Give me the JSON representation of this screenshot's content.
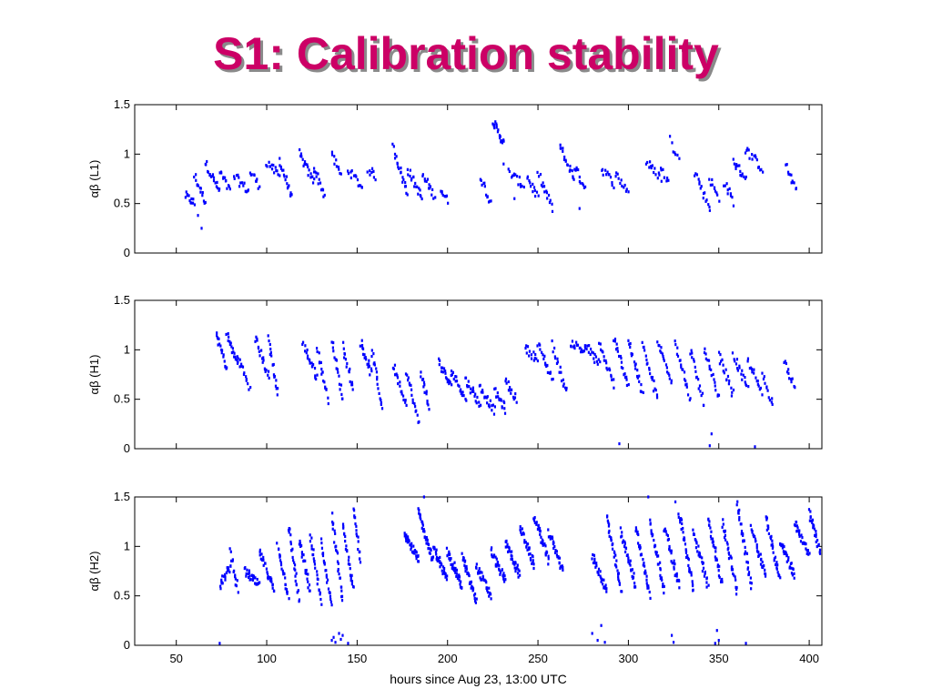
{
  "slide": {
    "title": "S1: Calibration stability",
    "title_color": "#cc0066",
    "shadow_color": "#8a8a8a"
  },
  "chart_data": {
    "type": "scatter",
    "marker_color": "#0000ff",
    "shared_x": {
      "label": "hours since Aug 23, 13:00 UTC",
      "lim": [
        27,
        407
      ],
      "ticks": [
        50,
        100,
        150,
        200,
        250,
        300,
        350,
        400
      ],
      "tick_labels": [
        "50",
        "100",
        "150",
        "200",
        "250",
        "300",
        "350",
        "400"
      ]
    },
    "panels": [
      {
        "name": "L1",
        "ylabel": "αβ (L1)",
        "ylim": [
          0,
          1.5
        ],
        "yticks": [
          0,
          0.5,
          1,
          1.5
        ],
        "ytick_labels": [
          "0",
          "0.5",
          "1",
          "1.5"
        ],
        "segments": [
          {
            "x0": 55,
            "x1": 60,
            "y0": 0.58,
            "y1": 0.5,
            "n": 12
          },
          {
            "x0": 60,
            "x1": 66,
            "y0": 0.78,
            "y1": 0.52,
            "n": 14
          },
          {
            "x0": 66,
            "x1": 74,
            "y0": 0.92,
            "y1": 0.62,
            "n": 18
          },
          {
            "x0": 74,
            "x1": 80,
            "y0": 0.82,
            "y1": 0.62,
            "n": 12
          },
          {
            "x0": 82,
            "x1": 90,
            "y0": 0.78,
            "y1": 0.62,
            "n": 14
          },
          {
            "x0": 91,
            "x1": 96,
            "y0": 0.82,
            "y1": 0.68,
            "n": 10
          },
          {
            "x0": 100,
            "x1": 107,
            "y0": 0.92,
            "y1": 0.78,
            "n": 14
          },
          {
            "x0": 107,
            "x1": 114,
            "y0": 0.94,
            "y1": 0.55,
            "n": 18
          },
          {
            "x0": 118,
            "x1": 126,
            "y0": 1.0,
            "y1": 0.72,
            "n": 18
          },
          {
            "x0": 126,
            "x1": 132,
            "y0": 0.88,
            "y1": 0.58,
            "n": 14
          },
          {
            "x0": 136,
            "x1": 141,
            "y0": 1.0,
            "y1": 0.78,
            "n": 10
          },
          {
            "x0": 145,
            "x1": 153,
            "y0": 0.85,
            "y1": 0.65,
            "n": 14
          },
          {
            "x0": 156,
            "x1": 160,
            "y0": 0.85,
            "y1": 0.78,
            "n": 8
          },
          {
            "x0": 170,
            "x1": 178,
            "y0": 1.07,
            "y1": 0.6,
            "n": 20
          },
          {
            "x0": 178,
            "x1": 186,
            "y0": 0.85,
            "y1": 0.55,
            "n": 18
          },
          {
            "x0": 186,
            "x1": 193,
            "y0": 0.78,
            "y1": 0.58,
            "n": 14
          },
          {
            "x0": 196,
            "x1": 200,
            "y0": 0.65,
            "y1": 0.52,
            "n": 8
          },
          {
            "x0": 218,
            "x1": 224,
            "y0": 0.78,
            "y1": 0.5,
            "n": 12
          },
          {
            "x0": 225,
            "x1": 231,
            "y0": 1.35,
            "y1": 1.1,
            "n": 20
          },
          {
            "x0": 234,
            "x1": 242,
            "y0": 0.82,
            "y1": 0.68,
            "n": 14
          },
          {
            "x0": 244,
            "x1": 250,
            "y0": 0.78,
            "y1": 0.55,
            "n": 12
          },
          {
            "x0": 250,
            "x1": 258,
            "y0": 0.8,
            "y1": 0.45,
            "n": 16
          },
          {
            "x0": 262,
            "x1": 270,
            "y0": 1.08,
            "y1": 0.75,
            "n": 18
          },
          {
            "x0": 270,
            "x1": 276,
            "y0": 0.88,
            "y1": 0.66,
            "n": 12
          },
          {
            "x0": 285,
            "x1": 292,
            "y0": 0.86,
            "y1": 0.7,
            "n": 12
          },
          {
            "x0": 293,
            "x1": 300,
            "y0": 0.8,
            "y1": 0.62,
            "n": 12
          },
          {
            "x0": 310,
            "x1": 318,
            "y0": 0.92,
            "y1": 0.76,
            "n": 14
          },
          {
            "x0": 318,
            "x1": 322,
            "y0": 0.85,
            "y1": 0.72,
            "n": 8
          },
          {
            "x0": 324,
            "x1": 328,
            "y0": 1.08,
            "y1": 1.0,
            "n": 6
          },
          {
            "x0": 337,
            "x1": 345,
            "y0": 0.82,
            "y1": 0.45,
            "n": 16
          },
          {
            "x0": 345,
            "x1": 350,
            "y0": 0.75,
            "y1": 0.55,
            "n": 10
          },
          {
            "x0": 353,
            "x1": 358,
            "y0": 0.72,
            "y1": 0.52,
            "n": 10
          },
          {
            "x0": 358,
            "x1": 365,
            "y0": 0.92,
            "y1": 0.76,
            "n": 14
          },
          {
            "x0": 365,
            "x1": 374,
            "y0": 1.05,
            "y1": 0.85,
            "n": 16
          },
          {
            "x0": 387,
            "x1": 393,
            "y0": 0.88,
            "y1": 0.62,
            "n": 12
          }
        ],
        "points": [
          {
            "x": 62,
            "y": 0.38
          },
          {
            "x": 64,
            "y": 0.25
          },
          {
            "x": 323,
            "y": 1.18
          },
          {
            "x": 273,
            "y": 0.45
          },
          {
            "x": 231,
            "y": 0.9
          },
          {
            "x": 237,
            "y": 0.55
          }
        ]
      },
      {
        "name": "H1",
        "ylabel": "αβ (H1)",
        "ylim": [
          0,
          1.5
        ],
        "yticks": [
          0,
          0.5,
          1,
          1.5
        ],
        "ytick_labels": [
          "0",
          "0.5",
          "1",
          "1.5"
        ],
        "segments": [
          {
            "x0": 72,
            "x1": 78,
            "y0": 1.18,
            "y1": 0.8,
            "n": 18
          },
          {
            "x0": 78,
            "x1": 84,
            "y0": 1.15,
            "y1": 0.85,
            "n": 18
          },
          {
            "x0": 84,
            "x1": 90,
            "y0": 0.95,
            "y1": 0.62,
            "n": 14
          },
          {
            "x0": 94,
            "x1": 101,
            "y0": 1.12,
            "y1": 0.72,
            "n": 20
          },
          {
            "x0": 101,
            "x1": 106,
            "y0": 1.12,
            "y1": 0.55,
            "n": 18
          },
          {
            "x0": 120,
            "x1": 128,
            "y0": 1.06,
            "y1": 0.72,
            "n": 20
          },
          {
            "x0": 128,
            "x1": 134,
            "y0": 1.0,
            "y1": 0.5,
            "n": 18
          },
          {
            "x0": 136,
            "x1": 142,
            "y0": 1.1,
            "y1": 0.5,
            "n": 18
          },
          {
            "x0": 142,
            "x1": 148,
            "y0": 1.05,
            "y1": 0.6,
            "n": 16
          },
          {
            "x0": 152,
            "x1": 158,
            "y0": 1.08,
            "y1": 0.75,
            "n": 18
          },
          {
            "x0": 158,
            "x1": 164,
            "y0": 1.0,
            "y1": 0.4,
            "n": 18
          },
          {
            "x0": 170,
            "x1": 177,
            "y0": 0.85,
            "y1": 0.45,
            "n": 18
          },
          {
            "x0": 177,
            "x1": 184,
            "y0": 0.8,
            "y1": 0.25,
            "n": 18
          },
          {
            "x0": 185,
            "x1": 190,
            "y0": 0.78,
            "y1": 0.42,
            "n": 14
          },
          {
            "x0": 195,
            "x1": 202,
            "y0": 0.88,
            "y1": 0.62,
            "n": 18
          },
          {
            "x0": 202,
            "x1": 210,
            "y0": 0.8,
            "y1": 0.5,
            "n": 20
          },
          {
            "x0": 210,
            "x1": 218,
            "y0": 0.7,
            "y1": 0.45,
            "n": 20
          },
          {
            "x0": 218,
            "x1": 226,
            "y0": 0.62,
            "y1": 0.38,
            "n": 20
          },
          {
            "x0": 226,
            "x1": 232,
            "y0": 0.58,
            "y1": 0.4,
            "n": 16
          },
          {
            "x0": 232,
            "x1": 238,
            "y0": 0.68,
            "y1": 0.5,
            "n": 14
          },
          {
            "x0": 243,
            "x1": 250,
            "y0": 1.02,
            "y1": 0.9,
            "n": 14
          },
          {
            "x0": 250,
            "x1": 258,
            "y0": 1.05,
            "y1": 0.7,
            "n": 18
          },
          {
            "x0": 258,
            "x1": 266,
            "y0": 1.05,
            "y1": 0.55,
            "n": 18
          },
          {
            "x0": 268,
            "x1": 276,
            "y0": 1.08,
            "y1": 0.98,
            "n": 16
          },
          {
            "x0": 276,
            "x1": 284,
            "y0": 1.05,
            "y1": 0.85,
            "n": 18
          },
          {
            "x0": 284,
            "x1": 292,
            "y0": 1.05,
            "y1": 0.65,
            "n": 18
          },
          {
            "x0": 292,
            "x1": 300,
            "y0": 1.1,
            "y1": 0.65,
            "n": 20
          },
          {
            "x0": 300,
            "x1": 308,
            "y0": 1.1,
            "y1": 0.55,
            "n": 20
          },
          {
            "x0": 308,
            "x1": 316,
            "y0": 1.05,
            "y1": 0.5,
            "n": 20
          },
          {
            "x0": 316,
            "x1": 324,
            "y0": 1.08,
            "y1": 0.7,
            "n": 18
          },
          {
            "x0": 326,
            "x1": 334,
            "y0": 1.08,
            "y1": 0.5,
            "n": 20
          },
          {
            "x0": 334,
            "x1": 342,
            "y0": 1.0,
            "y1": 0.45,
            "n": 18
          },
          {
            "x0": 342,
            "x1": 350,
            "y0": 1.0,
            "y1": 0.5,
            "n": 18
          },
          {
            "x0": 350,
            "x1": 358,
            "y0": 0.95,
            "y1": 0.55,
            "n": 18
          },
          {
            "x0": 358,
            "x1": 366,
            "y0": 0.95,
            "y1": 0.6,
            "n": 18
          },
          {
            "x0": 366,
            "x1": 374,
            "y0": 0.9,
            "y1": 0.55,
            "n": 16
          },
          {
            "x0": 374,
            "x1": 380,
            "y0": 0.75,
            "y1": 0.45,
            "n": 12
          },
          {
            "x0": 386,
            "x1": 392,
            "y0": 0.88,
            "y1": 0.65,
            "n": 12
          }
        ],
        "points": [
          {
            "x": 295,
            "y": 0.05
          },
          {
            "x": 345,
            "y": 0.03
          },
          {
            "x": 346,
            "y": 0.15
          },
          {
            "x": 370,
            "y": 0.02
          },
          {
            "x": 91,
            "y": 0.62
          }
        ]
      },
      {
        "name": "H2",
        "ylabel": "αβ (H2)",
        "ylim": [
          0,
          1.5
        ],
        "yticks": [
          0,
          0.5,
          1,
          1.5
        ],
        "ytick_labels": [
          "0",
          "0.5",
          "1",
          "1.5"
        ],
        "segments": [
          {
            "x0": 74,
            "x1": 80,
            "y0": 0.6,
            "y1": 0.8,
            "n": 22
          },
          {
            "x0": 80,
            "x1": 84,
            "y0": 0.95,
            "y1": 0.55,
            "n": 14
          },
          {
            "x0": 88,
            "x1": 96,
            "y0": 0.75,
            "y1": 0.6,
            "n": 28
          },
          {
            "x0": 96,
            "x1": 104,
            "y0": 0.95,
            "y1": 0.55,
            "n": 28
          },
          {
            "x0": 106,
            "x1": 112,
            "y0": 1.0,
            "y1": 0.5,
            "n": 24
          },
          {
            "x0": 112,
            "x1": 118,
            "y0": 1.2,
            "y1": 0.45,
            "n": 26
          },
          {
            "x0": 118,
            "x1": 124,
            "y0": 1.05,
            "y1": 0.55,
            "n": 24
          },
          {
            "x0": 124,
            "x1": 130,
            "y0": 1.1,
            "y1": 0.45,
            "n": 24
          },
          {
            "x0": 130,
            "x1": 136,
            "y0": 1.05,
            "y1": 0.4,
            "n": 24
          },
          {
            "x0": 136,
            "x1": 142,
            "y0": 1.3,
            "y1": 0.45,
            "n": 26
          },
          {
            "x0": 142,
            "x1": 148,
            "y0": 1.2,
            "y1": 0.55,
            "n": 24
          },
          {
            "x0": 148,
            "x1": 152,
            "y0": 1.38,
            "y1": 0.85,
            "n": 18
          },
          {
            "x0": 176,
            "x1": 184,
            "y0": 1.15,
            "y1": 0.85,
            "n": 34
          },
          {
            "x0": 184,
            "x1": 192,
            "y0": 1.35,
            "y1": 0.85,
            "n": 36
          },
          {
            "x0": 192,
            "x1": 200,
            "y0": 1.0,
            "y1": 0.65,
            "n": 34
          },
          {
            "x0": 200,
            "x1": 208,
            "y0": 0.95,
            "y1": 0.6,
            "n": 34
          },
          {
            "x0": 208,
            "x1": 216,
            "y0": 0.9,
            "y1": 0.45,
            "n": 34
          },
          {
            "x0": 216,
            "x1": 224,
            "y0": 0.8,
            "y1": 0.5,
            "n": 32
          },
          {
            "x0": 224,
            "x1": 232,
            "y0": 0.95,
            "y1": 0.65,
            "n": 32
          },
          {
            "x0": 232,
            "x1": 240,
            "y0": 1.05,
            "y1": 0.7,
            "n": 32
          },
          {
            "x0": 240,
            "x1": 248,
            "y0": 1.2,
            "y1": 0.8,
            "n": 32
          },
          {
            "x0": 248,
            "x1": 256,
            "y0": 1.3,
            "y1": 0.85,
            "n": 32
          },
          {
            "x0": 256,
            "x1": 264,
            "y0": 1.15,
            "y1": 0.75,
            "n": 30
          },
          {
            "x0": 280,
            "x1": 288,
            "y0": 0.9,
            "y1": 0.55,
            "n": 30
          },
          {
            "x0": 288,
            "x1": 296,
            "y0": 1.3,
            "y1": 0.55,
            "n": 34
          },
          {
            "x0": 296,
            "x1": 304,
            "y0": 1.15,
            "y1": 0.6,
            "n": 32
          },
          {
            "x0": 304,
            "x1": 312,
            "y0": 1.2,
            "y1": 0.5,
            "n": 32
          },
          {
            "x0": 312,
            "x1": 320,
            "y0": 1.25,
            "y1": 0.55,
            "n": 32
          },
          {
            "x0": 320,
            "x1": 328,
            "y0": 1.2,
            "y1": 0.6,
            "n": 32
          },
          {
            "x0": 328,
            "x1": 336,
            "y0": 1.35,
            "y1": 0.55,
            "n": 34
          },
          {
            "x0": 336,
            "x1": 344,
            "y0": 1.15,
            "y1": 0.6,
            "n": 32
          },
          {
            "x0": 344,
            "x1": 352,
            "y0": 1.3,
            "y1": 0.6,
            "n": 32
          },
          {
            "x0": 352,
            "x1": 360,
            "y0": 1.25,
            "y1": 0.55,
            "n": 32
          },
          {
            "x0": 360,
            "x1": 368,
            "y0": 1.45,
            "y1": 0.6,
            "n": 34
          },
          {
            "x0": 368,
            "x1": 376,
            "y0": 1.2,
            "y1": 0.7,
            "n": 32
          },
          {
            "x0": 376,
            "x1": 384,
            "y0": 1.3,
            "y1": 0.65,
            "n": 30
          },
          {
            "x0": 384,
            "x1": 392,
            "y0": 1.05,
            "y1": 0.7,
            "n": 28
          },
          {
            "x0": 392,
            "x1": 400,
            "y0": 1.25,
            "y1": 0.9,
            "n": 30
          },
          {
            "x0": 400,
            "x1": 406,
            "y0": 1.35,
            "y1": 0.95,
            "n": 24
          }
        ],
        "points": [
          {
            "x": 74,
            "y": 0.02
          },
          {
            "x": 136,
            "y": 0.05
          },
          {
            "x": 137,
            "y": 0.08
          },
          {
            "x": 138,
            "y": 0.03
          },
          {
            "x": 140,
            "y": 0.12
          },
          {
            "x": 141,
            "y": 0.06
          },
          {
            "x": 142,
            "y": 0.1
          },
          {
            "x": 145,
            "y": 0.02
          },
          {
            "x": 280,
            "y": 0.12
          },
          {
            "x": 283,
            "y": 0.05
          },
          {
            "x": 285,
            "y": 0.2
          },
          {
            "x": 287,
            "y": 0.03
          },
          {
            "x": 324,
            "y": 0.1
          },
          {
            "x": 325,
            "y": 0.03
          },
          {
            "x": 348,
            "y": 0.02
          },
          {
            "x": 349,
            "y": 0.15
          },
          {
            "x": 350,
            "y": 0.05
          },
          {
            "x": 365,
            "y": 0.02
          },
          {
            "x": 187,
            "y": 1.5
          },
          {
            "x": 311,
            "y": 1.5
          },
          {
            "x": 326,
            "y": 1.45
          }
        ]
      }
    ]
  }
}
